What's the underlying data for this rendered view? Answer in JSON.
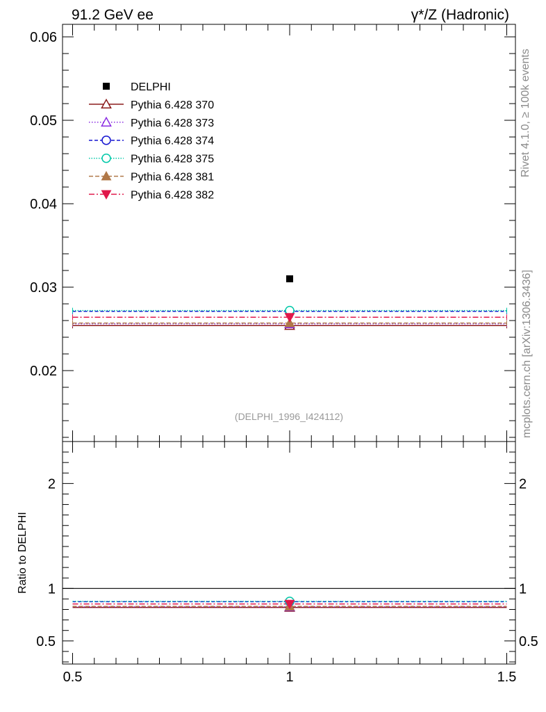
{
  "header": {
    "left_title": "91.2 GeV ee",
    "right_title": "γ*/Z (Hadronic)"
  },
  "side_labels": {
    "rivet": "Rivet 4.1.0, ≥ 100k events",
    "mcplots": "mcplots.cern.ch [arXiv:1306.3436]"
  },
  "analysis_label": "(DELPHI_1996_I424112)",
  "chart_data": [
    {
      "type": "scatter",
      "panel": "main",
      "xlim": [
        0.5,
        1.5
      ],
      "ylim": [
        0.0115,
        0.0615
      ],
      "ytick_labels": [
        "0.02",
        "0.03",
        "0.04",
        "0.05",
        "0.06"
      ],
      "ytick_values": [
        0.02,
        0.03,
        0.04,
        0.05,
        0.06
      ],
      "data": {
        "name": "DELPHI",
        "x": 1.0,
        "y": 0.031,
        "color": "#000000",
        "marker": "square"
      },
      "series": [
        {
          "name": "Pythia 6.428 370",
          "x": 1.0,
          "y": 0.0254,
          "color": "#8b1a1a",
          "marker": "triangle-open",
          "dash": ""
        },
        {
          "name": "Pythia 6.428 373",
          "x": 1.0,
          "y": 0.0256,
          "color": "#8a2be2",
          "marker": "triangle-open",
          "dash": "1.5,2.5"
        },
        {
          "name": "Pythia 6.428 374",
          "x": 1.0,
          "y": 0.0271,
          "color": "#1515d0",
          "marker": "circle-open",
          "dash": "5,3"
        },
        {
          "name": "Pythia 6.428 375",
          "x": 1.0,
          "y": 0.0272,
          "color": "#00c8a8",
          "marker": "circle-open",
          "dash": "1.5,2"
        },
        {
          "name": "Pythia 6.428 381",
          "x": 1.0,
          "y": 0.0257,
          "color": "#b07848",
          "marker": "triangle-filled",
          "dash": "6,3"
        },
        {
          "name": "Pythia 6.428 382",
          "x": 1.0,
          "y": 0.0264,
          "color": "#e0184a",
          "marker": "triangle-down-filled",
          "dash": "8,3,2,3"
        }
      ]
    },
    {
      "type": "scatter",
      "panel": "ratio",
      "ylabel": "Ratio to DELPHI",
      "xlim": [
        0.5,
        1.5
      ],
      "ylim": [
        0.28,
        2.4
      ],
      "xtick_labels": [
        "0.5",
        "1",
        "1.5"
      ],
      "xtick_values": [
        0.5,
        1.0,
        1.5
      ],
      "ytick_labels": [
        "0.5",
        "1",
        "2"
      ],
      "ytick_values": [
        0.5,
        1.0,
        2.0
      ],
      "reference": 1.0,
      "ratios": [
        0.819,
        0.826,
        0.874,
        0.877,
        0.829,
        0.852
      ]
    }
  ]
}
